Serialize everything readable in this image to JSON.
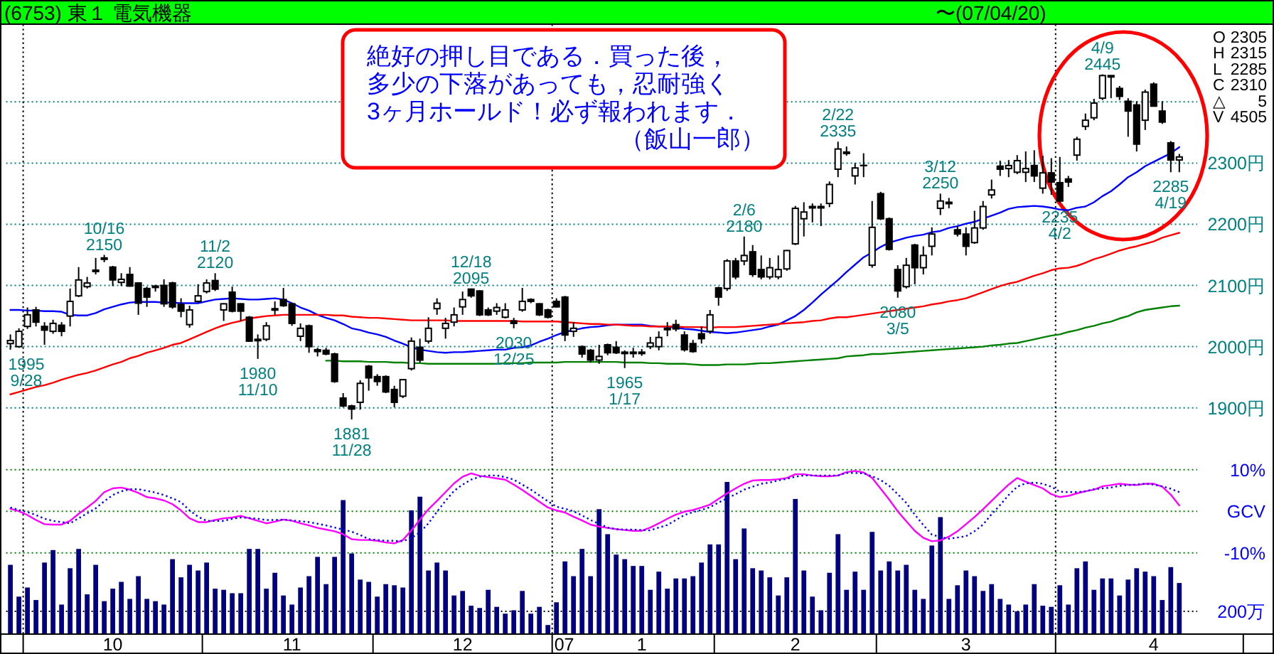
{
  "chart_data": [
    {
      "type": "candlestick",
      "title": "(6753) 東１ 電気機器",
      "subtitle": "〜(07/04/20)",
      "categories": [
        null,
        null,
        null,
        null,
        null,
        null,
        null,
        null,
        null,
        null,
        null,
        null,
        "10",
        null,
        null,
        null,
        null,
        null,
        null,
        null,
        null,
        null,
        null,
        null,
        null,
        null,
        null,
        null,
        null,
        null,
        null,
        null,
        null,
        "11",
        null,
        null,
        null,
        null,
        null,
        null,
        null,
        null,
        null,
        null,
        null,
        null,
        null,
        null,
        null,
        null,
        null,
        null,
        null,
        "12",
        null,
        null,
        null,
        null,
        null,
        null,
        null,
        null,
        null,
        null,
        null,
        null,
        null,
        null,
        null,
        null,
        null,
        null,
        null,
        null,
        "1",
        null,
        null,
        null,
        null,
        null,
        null,
        null,
        null,
        null,
        null,
        null,
        null,
        null,
        null,
        null,
        null,
        null,
        "2",
        null,
        null,
        null,
        null,
        null,
        null,
        null,
        null,
        null,
        null,
        null,
        null,
        null,
        null,
        null,
        null,
        null,
        null,
        null,
        "3",
        null,
        null,
        null,
        null,
        null,
        null,
        null,
        null,
        null,
        null,
        null,
        null,
        null,
        null,
        null,
        null,
        null,
        null,
        null,
        null,
        null,
        "4",
        null,
        null,
        null
      ],
      "ohlc": [
        [
          2005,
          2020,
          1995,
          2010
        ],
        [
          2000,
          2030,
          1998,
          2025
        ],
        [
          2033,
          2064,
          2029,
          2052
        ],
        [
          2060,
          2065,
          2033,
          2040
        ],
        [
          2033,
          2040,
          2003,
          2027
        ],
        [
          2025,
          2044,
          2021,
          2038
        ],
        [
          2035,
          2040,
          2017,
          2025
        ],
        [
          2050,
          2095,
          2033,
          2074
        ],
        [
          2083,
          2130,
          2081,
          2109
        ],
        [
          2098,
          2114,
          2095,
          2104
        ],
        [
          2125,
          2145,
          2118,
          2123
        ],
        [
          2145,
          2150,
          2138,
          2143
        ],
        [
          2130,
          2132,
          2099,
          2109
        ],
        [
          2105,
          2120,
          2099,
          2110
        ],
        [
          2118,
          2130,
          2098,
          2099
        ],
        [
          2104,
          2105,
          2052,
          2071
        ],
        [
          2095,
          2098,
          2065,
          2081
        ],
        [
          2099,
          2101,
          2090,
          2098
        ],
        [
          2100,
          2110,
          2065,
          2070
        ],
        [
          2104,
          2106,
          2062,
          2065
        ],
        [
          2069,
          2079,
          2048,
          2058
        ],
        [
          2036,
          2067,
          2031,
          2060
        ],
        [
          2074,
          2102,
          2071,
          2083
        ],
        [
          2090,
          2110,
          2087,
          2104
        ],
        [
          2108,
          2120,
          2091,
          2094
        ],
        [
          2060,
          2071,
          2042,
          2070
        ],
        [
          2089,
          2098,
          2056,
          2058
        ],
        [
          2070,
          2071,
          2042,
          2058
        ],
        [
          2048,
          2050,
          2008,
          2009
        ],
        [
          2010,
          2020,
          1980,
          2012
        ],
        [
          2012,
          2040,
          2009,
          2034
        ],
        [
          2060,
          2074,
          2052,
          2062
        ],
        [
          2077,
          2096,
          2065,
          2067
        ],
        [
          2070,
          2071,
          2034,
          2038
        ],
        [
          2017,
          2038,
          2009,
          2030
        ],
        [
          2034,
          2036,
          1990,
          2000
        ],
        [
          1995,
          1998,
          1984,
          1992
        ],
        [
          1994,
          1998,
          1986,
          1988
        ],
        [
          1988,
          1990,
          1941,
          1943
        ],
        [
          1916,
          1924,
          1901,
          1903
        ],
        [
          1903,
          1905,
          1881,
          1898
        ],
        [
          1909,
          1945,
          1897,
          1940
        ],
        [
          1968,
          1970,
          1928,
          1949
        ],
        [
          1951,
          1955,
          1936,
          1943
        ],
        [
          1951,
          1953,
          1924,
          1926
        ],
        [
          1930,
          1936,
          1901,
          1909
        ],
        [
          1919,
          1947,
          1916,
          1946
        ],
        [
          1964,
          2015,
          1961,
          2009
        ],
        [
          1999,
          2013,
          1974,
          1978
        ],
        [
          2009,
          2048,
          2005,
          2030
        ],
        [
          2062,
          2079,
          2052,
          2071
        ],
        [
          2030,
          2047,
          2013,
          2038
        ],
        [
          2040,
          2064,
          2033,
          2052
        ],
        [
          2065,
          2090,
          2052,
          2077
        ],
        [
          2094,
          2095,
          2080,
          2083
        ],
        [
          2091,
          2092,
          2050,
          2052
        ],
        [
          2060,
          2064,
          2050,
          2052
        ],
        [
          2058,
          2071,
          2052,
          2064
        ],
        [
          2048,
          2071,
          2046,
          2060
        ],
        [
          2042,
          2047,
          2030,
          2038
        ],
        [
          2060,
          2096,
          2057,
          2074
        ],
        [
          2077,
          2079,
          2071,
          2074
        ],
        [
          2070,
          2071,
          2050,
          2052
        ],
        [
          2060,
          2062,
          2046,
          2048
        ],
        [
          2074,
          2079,
          2064,
          2065
        ],
        [
          2081,
          2083,
          2009,
          2019
        ],
        [
          2025,
          2040,
          2016,
          2030
        ],
        [
          2000,
          2002,
          1982,
          1988
        ],
        [
          1994,
          1996,
          1974,
          1978
        ],
        [
          1978,
          2003,
          1972,
          1984
        ],
        [
          2003,
          2005,
          1986,
          1990
        ],
        [
          1999,
          2009,
          1988,
          1990
        ],
        [
          1990,
          1994,
          1965,
          1991
        ],
        [
          1990,
          1998,
          1982,
          1991
        ],
        [
          1991,
          1996,
          1985,
          1990
        ],
        [
          2000,
          2016,
          1996,
          2006
        ],
        [
          2000,
          2025,
          1994,
          2015
        ],
        [
          2030,
          2040,
          2017,
          2029
        ],
        [
          2036,
          2044,
          2025,
          2029
        ],
        [
          2019,
          2025,
          1992,
          1995
        ],
        [
          2005,
          2011,
          1990,
          1992
        ],
        [
          2021,
          2033,
          2005,
          2013
        ],
        [
          2025,
          2060,
          2021,
          2052
        ],
        [
          2096,
          2098,
          2067,
          2081
        ],
        [
          2095,
          2143,
          2091,
          2140
        ],
        [
          2140,
          2145,
          2110,
          2114
        ],
        [
          2140,
          2180,
          2133,
          2149
        ],
        [
          2155,
          2166,
          2114,
          2118
        ],
        [
          2126,
          2149,
          2110,
          2114
        ],
        [
          2114,
          2145,
          2110,
          2129
        ],
        [
          2114,
          2149,
          2110,
          2126
        ],
        [
          2127,
          2158,
          2124,
          2157
        ],
        [
          2168,
          2230,
          2166,
          2226
        ],
        [
          2209,
          2236,
          2180,
          2220
        ],
        [
          2228,
          2234,
          2203,
          2229
        ],
        [
          2228,
          2234,
          2197,
          2229
        ],
        [
          2234,
          2270,
          2228,
          2265
        ],
        [
          2290,
          2335,
          2277,
          2323
        ],
        [
          2318,
          2327,
          2312,
          2317
        ],
        [
          2279,
          2300,
          2265,
          2292
        ],
        [
          2296,
          2316,
          2277,
          2296
        ],
        [
          2133,
          2238,
          2129,
          2195
        ],
        [
          2250,
          2253,
          2207,
          2209
        ],
        [
          2209,
          2211,
          2157,
          2159
        ],
        [
          2126,
          2133,
          2080,
          2091
        ],
        [
          2098,
          2145,
          2095,
          2133
        ],
        [
          2166,
          2168,
          2102,
          2129
        ],
        [
          2129,
          2164,
          2118,
          2149
        ],
        [
          2164,
          2195,
          2149,
          2184
        ],
        [
          2226,
          2250,
          2215,
          2238
        ],
        [
          2235,
          2243,
          2226,
          2236
        ],
        [
          2191,
          2197,
          2180,
          2184
        ],
        [
          2184,
          2195,
          2149,
          2164
        ],
        [
          2170,
          2222,
          2168,
          2194
        ],
        [
          2194,
          2238,
          2191,
          2229
        ],
        [
          2248,
          2273,
          2242,
          2256
        ],
        [
          2295,
          2304,
          2279,
          2290
        ],
        [
          2291,
          2305,
          2277,
          2296
        ],
        [
          2285,
          2313,
          2282,
          2304
        ],
        [
          2285,
          2319,
          2269,
          2291
        ],
        [
          2296,
          2321,
          2269,
          2279
        ],
        [
          2259,
          2312,
          2250,
          2284
        ],
        [
          2284,
          2308,
          2248,
          2269
        ],
        [
          2268,
          2310,
          2235,
          2238
        ],
        [
          2274,
          2279,
          2261,
          2269
        ],
        [
          2313,
          2343,
          2304,
          2339
        ],
        [
          2360,
          2381,
          2354,
          2370
        ],
        [
          2374,
          2405,
          2370,
          2398
        ],
        [
          2406,
          2445,
          2403,
          2443
        ],
        [
          2443,
          2443,
          2406,
          2442
        ],
        [
          2422,
          2426,
          2403,
          2409
        ],
        [
          2401,
          2406,
          2343,
          2385
        ],
        [
          2395,
          2401,
          2319,
          2331
        ],
        [
          2370,
          2420,
          2354,
          2416
        ],
        [
          2429,
          2432,
          2393,
          2393
        ],
        [
          2385,
          2401,
          2364,
          2367
        ],
        [
          2333,
          2336,
          2285,
          2305
        ],
        [
          2305,
          2315,
          2285,
          2310
        ]
      ],
      "series": [
        {
          "type": "line",
          "color": "#0000ff",
          "values": [
            2060,
            2060,
            2059,
            2059,
            2058,
            2058,
            2057,
            2052,
            2051,
            2051,
            2055,
            2061,
            2065,
            2069,
            2072,
            2073,
            2073,
            2073,
            2072,
            2072,
            2071,
            2071,
            2071,
            2074,
            2077,
            2078,
            2079,
            2078,
            2077,
            2077,
            2078,
            2079,
            2077,
            2071,
            2064,
            2059,
            2052,
            2047,
            2043,
            2037,
            2030,
            2027,
            2023,
            2020,
            2016,
            2010,
            2005,
            1999,
            1995,
            1993,
            1991,
            1990,
            1991,
            1991,
            1992,
            1993,
            1994,
            1995,
            1995,
            1998,
            1999,
            2002,
            2008,
            2013,
            2019,
            2024,
            2027,
            2030,
            2032,
            2033,
            2035,
            2036,
            2036,
            2036,
            2036,
            2034,
            2033,
            2033,
            2031,
            2029,
            2028,
            2026,
            2024,
            2023,
            2022,
            2023,
            2025,
            2027,
            2029,
            2033,
            2036,
            2043,
            2050,
            2060,
            2072,
            2085,
            2097,
            2109,
            2122,
            2134,
            2146,
            2154,
            2163,
            2170,
            2174,
            2178,
            2181,
            2183,
            2187,
            2189,
            2194,
            2197,
            2201,
            2204,
            2209,
            2214,
            2219,
            2225,
            2228,
            2229,
            2230,
            2229,
            2227,
            2224,
            2223,
            2227,
            2229,
            2236,
            2246,
            2254,
            2265,
            2277,
            2285,
            2295,
            2302,
            2309,
            2316,
            2326
          ]
        },
        {
          "type": "line",
          "color": "#ff0000",
          "values": [
            1922,
            1926,
            1930,
            1934,
            1937,
            1941,
            1946,
            1950,
            1954,
            1957,
            1961,
            1966,
            1971,
            1975,
            1981,
            1985,
            1990,
            1994,
            1998,
            2003,
            2006,
            2012,
            2018,
            2024,
            2030,
            2035,
            2039,
            2042,
            2046,
            2048,
            2050,
            2051,
            2052,
            2052,
            2052,
            2052,
            2052,
            2052,
            2051,
            2051,
            2049,
            2048,
            2047,
            2047,
            2046,
            2045,
            2044,
            2043,
            2043,
            2043,
            2043,
            2043,
            2042,
            2042,
            2042,
            2042,
            2042,
            2042,
            2042,
            2042,
            2041,
            2041,
            2041,
            2041,
            2041,
            2040,
            2039,
            2038,
            2037,
            2037,
            2036,
            2036,
            2035,
            2034,
            2034,
            2033,
            2033,
            2033,
            2033,
            2032,
            2032,
            2032,
            2031,
            2032,
            2032,
            2032,
            2033,
            2034,
            2035,
            2036,
            2037,
            2038,
            2039,
            2040,
            2042,
            2043,
            2046,
            2048,
            2048,
            2050,
            2052,
            2054,
            2056,
            2058,
            2060,
            2062,
            2064,
            2066,
            2069,
            2071,
            2074,
            2076,
            2079,
            2084,
            2089,
            2094,
            2099,
            2103,
            2106,
            2111,
            2116,
            2120,
            2125,
            2128,
            2129,
            2132,
            2137,
            2143,
            2147,
            2152,
            2157,
            2161,
            2164,
            2168,
            2172,
            2178,
            2182,
            2186
          ]
        },
        {
          "type": "line",
          "color": "#008000",
          "values": [
            null,
            null,
            null,
            null,
            null,
            null,
            null,
            null,
            null,
            null,
            null,
            null,
            null,
            null,
            null,
            null,
            null,
            null,
            null,
            null,
            null,
            null,
            null,
            null,
            null,
            null,
            null,
            null,
            null,
            null,
            null,
            null,
            null,
            null,
            null,
            null,
            null,
            1977,
            1977,
            1976,
            1976,
            1976,
            1975,
            1975,
            1975,
            1974,
            1974,
            1973,
            1973,
            1972,
            1972,
            1972,
            1972,
            1972,
            1972,
            1972,
            1972,
            1972,
            1973,
            1973,
            1973,
            1974,
            1974,
            1974,
            1974,
            1975,
            1975,
            1975,
            1975,
            1975,
            1975,
            1975,
            1974,
            1974,
            1974,
            1973,
            1973,
            1972,
            1972,
            1972,
            1971,
            1970,
            1970,
            1970,
            1971,
            1971,
            1971,
            1972,
            1973,
            1973,
            1974,
            1975,
            1976,
            1977,
            1978,
            1979,
            1980,
            1981,
            1984,
            1985,
            1986,
            1988,
            1988,
            1989,
            1990,
            1991,
            1992,
            1993,
            1994,
            1995,
            1996,
            1997,
            1998,
            1999,
            2000,
            2002,
            2003,
            2005,
            2006,
            2009,
            2012,
            2015,
            2018,
            2020,
            2024,
            2027,
            2031,
            2034,
            2038,
            2041,
            2046,
            2050,
            2056,
            2060,
            2062,
            2064,
            2066,
            2067
          ]
        }
      ],
      "ylim": [
        1816,
        2527
      ],
      "yticks": [
        {
          "value": 1900,
          "label": "1900円"
        },
        {
          "value": 2000,
          "label": "2000円"
        },
        {
          "value": 2100,
          "label": "2100円"
        },
        {
          "value": 2200,
          "label": "2200円"
        },
        {
          "value": 2300,
          "label": "2300円"
        },
        {
          "value": 2400,
          "label": null
        }
      ],
      "grid": "y",
      "tick_labels": "y",
      "annotations": [
        "絶好の押し目である．買った後，多少の下落があっても，忍耐強く3ヶ月ホールド！必ず報われます．（飯山一郎）",
        "O 2305",
        "H 2315",
        "L 2285",
        "C 2310",
        "△ 5",
        "V 4505",
        {
          "text": "1995\n9/28",
          "y": 1995
        },
        {
          "text": "10/16\n2150",
          "y": 2150
        },
        {
          "text": "11/2\n2120",
          "y": 2120
        },
        {
          "text": "1980\n11/10",
          "y": 1980
        },
        {
          "text": "1881\n11/28",
          "y": 1881
        },
        {
          "text": "12/18\n2095",
          "y": 2095
        },
        {
          "text": "2030\n12/25",
          "y": 2030
        },
        {
          "text": "1965\n1/17",
          "y": 1965
        },
        {
          "text": "2/6\n2180",
          "y": 2180
        },
        {
          "text": "2/22\n2335",
          "y": 2335
        },
        {
          "text": "2080\n3/5",
          "y": 2080
        },
        {
          "text": "3/12\n2250",
          "y": 2250
        },
        {
          "text": "4/9\n2445",
          "y": 2445
        },
        {
          "text": "2235\n4/2",
          "y": 2235
        },
        {
          "text": "2285\n4/19",
          "y": 2285
        }
      ]
    },
    {
      "type": "line",
      "categories": [
        null,
        null,
        null,
        null,
        null,
        null,
        null,
        null,
        null,
        null,
        null,
        null,
        "10",
        null,
        null,
        null,
        null,
        null,
        null,
        null,
        null,
        null,
        null,
        null,
        null,
        null,
        null,
        null,
        null,
        null,
        null,
        null,
        null,
        "11",
        null,
        null,
        null,
        null,
        null,
        null,
        null,
        null,
        null,
        null,
        null,
        null,
        null,
        null,
        null,
        null,
        null,
        null,
        null,
        "12",
        null,
        null,
        null,
        null,
        null,
        null,
        null,
        null,
        null,
        null,
        null,
        null,
        null,
        null,
        null,
        null,
        null,
        null,
        null,
        null,
        "1",
        null,
        null,
        null,
        null,
        null,
        null,
        null,
        null,
        null,
        null,
        null,
        null,
        null,
        null,
        null,
        null,
        null,
        "2",
        null,
        null,
        null,
        null,
        null,
        null,
        null,
        null,
        null,
        null,
        null,
        null,
        null,
        null,
        null,
        null,
        null,
        null,
        null,
        "3",
        null,
        null,
        null,
        null,
        null,
        null,
        null,
        null,
        null,
        null,
        null,
        null,
        null,
        null,
        null,
        null,
        null,
        null,
        null,
        null,
        null,
        "4",
        null,
        null,
        null
      ],
      "series": [
        {
          "type": "bar",
          "axis": "y2",
          "color": "#000080",
          "values": [
            610,
            330,
            410,
            300,
            630,
            740,
            260,
            580,
            750,
            350,
            610,
            290,
            400,
            460,
            310,
            510,
            310,
            290,
            260,
            660,
            500,
            610,
            560,
            630,
            400,
            390,
            360,
            360,
            750,
            750,
            400,
            540,
            340,
            260,
            410,
            510,
            680,
            440,
            680,
            1180,
            710,
            480,
            460,
            330,
            440,
            430,
            410,
            1090,
            1210,
            560,
            630,
            560,
            340,
            380,
            250,
            230,
            390,
            240,
            180,
            210,
            380,
            180,
            240,
            80,
            280,
            640,
            510,
            750,
            510,
            1100,
            880,
            700,
            660,
            600,
            600,
            390,
            550,
            400,
            490,
            490,
            510,
            630,
            790,
            790,
            1340,
            660,
            930,
            580,
            560,
            500,
            340,
            500,
            1190,
            560,
            330,
            210,
            540,
            880,
            390,
            550,
            390,
            900,
            560,
            640,
            560,
            610,
            390,
            310,
            780,
            1030,
            310,
            430,
            560,
            510,
            380,
            440,
            310,
            260,
            200,
            260,
            440,
            250,
            240,
            430,
            260,
            580,
            640,
            390,
            490,
            490,
            340,
            480,
            580,
            550,
            510,
            300,
            590,
            450
          ]
        },
        {
          "color": "#ff00ff",
          "values": [
            0.6,
            0.0,
            -0.9,
            -2.1,
            -3.1,
            -3.2,
            -3.2,
            -2.3,
            -0.6,
            0.9,
            2.5,
            4.6,
            5.5,
            5.7,
            5.2,
            4.4,
            3.4,
            3.1,
            2.6,
            1.7,
            0.2,
            -1.7,
            -2.6,
            -2.6,
            -2.1,
            -1.7,
            -1.5,
            -1.1,
            -1.7,
            -2.3,
            -2.9,
            -2.5,
            -2.0,
            -2.3,
            -2.9,
            -3.4,
            -4.0,
            -4.4,
            -4.8,
            -5.5,
            -6.7,
            -6.9,
            -6.9,
            -7.1,
            -7.5,
            -7.7,
            -6.9,
            -4.6,
            -2.0,
            0.5,
            2.5,
            4.6,
            6.7,
            8.3,
            9.1,
            8.5,
            8.2,
            7.9,
            7.6,
            6.4,
            5.1,
            3.7,
            2.3,
            0.9,
            0.2,
            -0.3,
            -1.3,
            -2.2,
            -3.2,
            -3.7,
            -4.0,
            -4.3,
            -4.5,
            -4.7,
            -4.7,
            -3.9,
            -2.9,
            -1.8,
            -0.8,
            -0.1,
            0.3,
            0.9,
            1.6,
            3.0,
            4.3,
            5.5,
            6.6,
            7.4,
            7.5,
            7.5,
            7.7,
            8.0,
            8.9,
            8.9,
            8.6,
            8.4,
            8.4,
            8.6,
            9.4,
            9.7,
            9.3,
            8.0,
            5.4,
            2.8,
            0.0,
            -2.4,
            -4.7,
            -6.4,
            -7.2,
            -7.0,
            -6.1,
            -4.8,
            -3.1,
            -1.4,
            0.5,
            2.5,
            4.5,
            6.4,
            8.0,
            7.1,
            6.3,
            5.5,
            4.1,
            3.4,
            3.7,
            4.3,
            4.8,
            5.2,
            6.0,
            6.3,
            6.6,
            6.4,
            6.3,
            6.6,
            6.6,
            5.9,
            4.0,
            1.4
          ]
        },
        {
          "color": "#0000ff",
          "line_style": "dotted",
          "values": [
            0.9,
            0.3,
            -0.2,
            -0.9,
            -1.8,
            -2.3,
            -2.6,
            -2.9,
            -1.7,
            -0.5,
            0.7,
            2.4,
            3.9,
            4.8,
            5.3,
            5.3,
            4.9,
            4.5,
            3.9,
            3.1,
            2.2,
            0.2,
            -1.3,
            -2.3,
            -2.3,
            -2.3,
            -1.8,
            -1.5,
            -1.6,
            -1.8,
            -2.1,
            -2.1,
            -2.0,
            -2.2,
            -2.4,
            -2.6,
            -3.0,
            -3.4,
            -3.9,
            -4.4,
            -4.9,
            -5.7,
            -6.7,
            -6.9,
            -7.1,
            -7.1,
            -7.2,
            -6.4,
            -5.1,
            -2.9,
            -0.1,
            2.5,
            4.9,
            6.4,
            7.6,
            8.3,
            8.6,
            8.6,
            8.2,
            7.6,
            6.4,
            5.2,
            3.8,
            2.4,
            1.1,
            0.6,
            0.0,
            -1.0,
            -2.1,
            -3.0,
            -3.9,
            -4.3,
            -4.4,
            -4.4,
            -4.5,
            -4.6,
            -3.9,
            -3.3,
            -2.1,
            -0.9,
            -0.2,
            0.3,
            1.0,
            2.1,
            3.1,
            4.1,
            5.2,
            5.9,
            6.6,
            6.9,
            7.4,
            7.8,
            8.3,
            8.6,
            8.6,
            8.6,
            8.6,
            8.6,
            9.2,
            9.2,
            9.1,
            8.4,
            7.5,
            6.1,
            4.1,
            2.0,
            -0.8,
            -3.3,
            -5.6,
            -6.2,
            -6.6,
            -6.3,
            -6.0,
            -4.8,
            -3.2,
            -0.7,
            1.5,
            3.9,
            5.9,
            6.7,
            6.9,
            6.6,
            5.9,
            4.7,
            4.6,
            4.6,
            4.8,
            5.3,
            5.5,
            5.7,
            6.1,
            6.3,
            6.4,
            6.6,
            6.4,
            6.0,
            5.4,
            4.6
          ]
        }
      ],
      "ylim": [
        -29.5,
        12.5
      ],
      "yticks": [
        {
          "value": 10,
          "label": "10%"
        },
        {
          "value": 0,
          "label": "GCV"
        },
        {
          "value": -10,
          "label": "-10%"
        }
      ],
      "y2lim": [
        0,
        1540
      ],
      "y2ticks": [
        {
          "value": 200,
          "label": "200万"
        }
      ],
      "grid": "y",
      "annotations": [
        "07"
      ]
    }
  ]
}
